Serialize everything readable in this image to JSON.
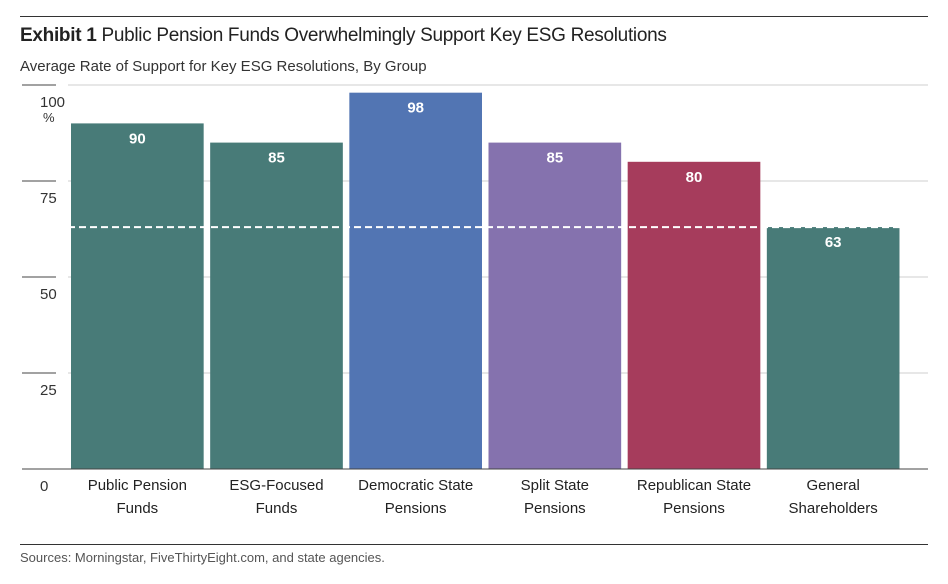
{
  "header": {
    "exhibit_label": "Exhibit 1",
    "title": "Public Pension Funds Overwhelmingly Support Key ESG Resolutions",
    "subtitle": "Average Rate of Support for Key ESG Resolutions, By Group"
  },
  "source": "Sources: Morningstar, FiveThirtyEight.com, and state agencies.",
  "chart_data": {
    "type": "bar",
    "title": "Public Pension Funds Overwhelmingly Support Key ESG Resolutions",
    "subtitle": "Average Rate of Support for Key ESG Resolutions, By Group",
    "categories": [
      [
        "Public Pension",
        "Funds"
      ],
      [
        "ESG-Focused",
        "Funds"
      ],
      [
        "Democratic State",
        "Pensions"
      ],
      [
        "Split State",
        "Pensions"
      ],
      [
        "Republican State",
        "Pensions"
      ],
      [
        "General",
        "Shareholders"
      ]
    ],
    "values": [
      90,
      85,
      98,
      85,
      80,
      63
    ],
    "colors": [
      "#487b78",
      "#487b78",
      "#5275b3",
      "#8572ae",
      "#a63c5c",
      "#487b78"
    ],
    "ylim": [
      0,
      100
    ],
    "yticks": [
      0,
      25,
      50,
      75,
      100
    ],
    "ytick_labels": [
      "0",
      "25",
      "50",
      "75",
      "100"
    ],
    "y_unit": "%",
    "reference_line": {
      "value": 63,
      "style": "dashed",
      "color": "#ffffff"
    },
    "grid": true,
    "xlabel": "",
    "ylabel": ""
  }
}
